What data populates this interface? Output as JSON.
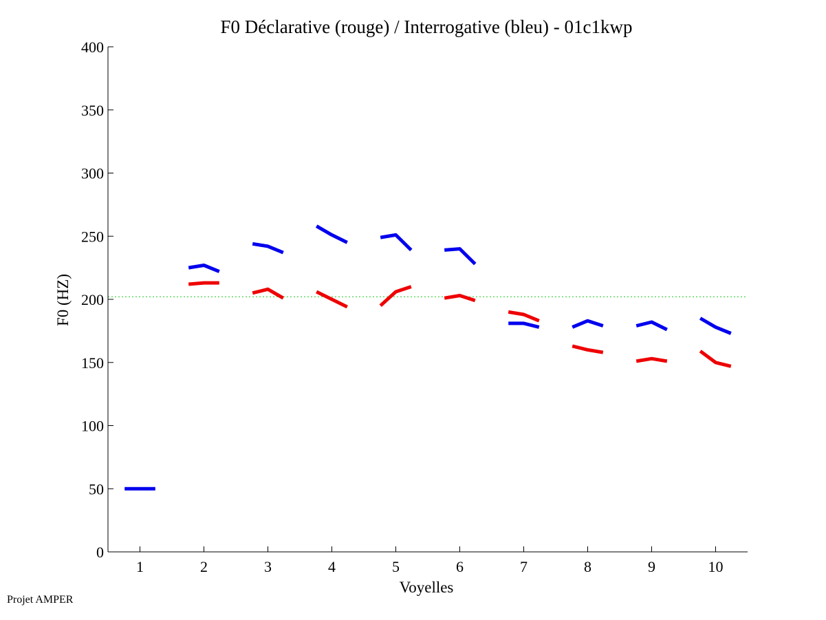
{
  "chart_data": {
    "type": "line",
    "title": "F0 Déclarative (rouge) / Interrogative (bleu) - 01c1kwp",
    "xlabel": "Voyelles",
    "ylabel": "F0 (HZ)",
    "xlim": [
      0.5,
      10.5
    ],
    "ylim": [
      0,
      400
    ],
    "xticks": [
      "1",
      "2",
      "3",
      "4",
      "5",
      "6",
      "7",
      "8",
      "9",
      "10"
    ],
    "yticks": [
      "0",
      "50",
      "100",
      "150",
      "200",
      "250",
      "300",
      "350",
      "400"
    ],
    "reference_line": {
      "value": 202,
      "color": "#33cc33",
      "style": "dotted"
    },
    "series": [
      {
        "name": "Interrogative",
        "color": "#0000ee",
        "segments": [
          {
            "vowel": 1,
            "values": [
              50,
              50,
              50
            ]
          },
          {
            "vowel": 2,
            "values": [
              225,
              227,
              222
            ]
          },
          {
            "vowel": 3,
            "values": [
              244,
              242,
              237
            ]
          },
          {
            "vowel": 4,
            "values": [
              258,
              251,
              245
            ]
          },
          {
            "vowel": 5,
            "values": [
              249,
              251,
              239
            ]
          },
          {
            "vowel": 6,
            "values": [
              239,
              240,
              228
            ]
          },
          {
            "vowel": 7,
            "values": [
              181,
              181,
              178
            ]
          },
          {
            "vowel": 8,
            "values": [
              178,
              183,
              179
            ]
          },
          {
            "vowel": 9,
            "values": [
              179,
              182,
              176
            ]
          },
          {
            "vowel": 10,
            "values": [
              185,
              178,
              173
            ]
          }
        ]
      },
      {
        "name": "Déclarative",
        "color": "#ee0000",
        "segments": [
          {
            "vowel": 2,
            "values": [
              212,
              213,
              213
            ]
          },
          {
            "vowel": 3,
            "values": [
              205,
              208,
              201
            ]
          },
          {
            "vowel": 4,
            "values": [
              206,
              200,
              194
            ]
          },
          {
            "vowel": 5,
            "values": [
              195,
              206,
              210
            ]
          },
          {
            "vowel": 6,
            "values": [
              201,
              203,
              199
            ]
          },
          {
            "vowel": 7,
            "values": [
              190,
              188,
              183
            ]
          },
          {
            "vowel": 8,
            "values": [
              163,
              160,
              158
            ]
          },
          {
            "vowel": 9,
            "values": [
              151,
              153,
              151
            ]
          },
          {
            "vowel": 10,
            "values": [
              159,
              150,
              147
            ]
          }
        ]
      }
    ]
  },
  "footer": {
    "label": "Projet AMPER"
  }
}
